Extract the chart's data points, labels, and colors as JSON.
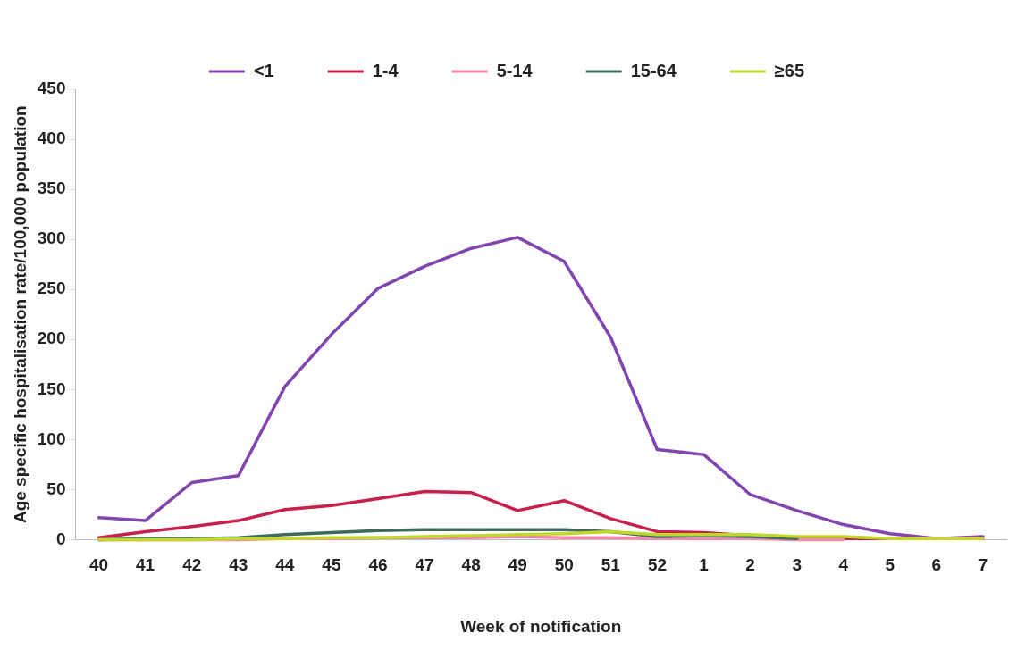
{
  "chart_data": {
    "type": "line",
    "xlabel": "Week of notification",
    "ylabel": "Age specific hospitalisation rate/100,000 population",
    "categories": [
      "40",
      "41",
      "42",
      "43",
      "44",
      "45",
      "46",
      "47",
      "48",
      "49",
      "50",
      "51",
      "52",
      "1",
      "2",
      "3",
      "4",
      "5",
      "6",
      "7"
    ],
    "ylim": [
      0,
      450
    ],
    "yticks": [
      0,
      50,
      100,
      150,
      200,
      250,
      300,
      350,
      400,
      450
    ],
    "grid": false,
    "legend": "top",
    "marker": "none",
    "line_style": "solid",
    "series": [
      {
        "name": "<1",
        "color": "#8245b0",
        "values": [
          22,
          19,
          57,
          64,
          153,
          205,
          251,
          273,
          291,
          302,
          278,
          202,
          90,
          85,
          45,
          29,
          15,
          6,
          1,
          3
        ]
      },
      {
        "name": "1-4",
        "color": "#c8204a",
        "values": [
          2,
          8,
          13,
          19,
          30,
          34,
          41,
          48,
          47,
          29,
          39,
          21,
          8,
          7,
          4,
          2,
          1,
          1,
          1,
          1
        ]
      },
      {
        "name": "5-14",
        "color": "#f08aa8",
        "values": [
          0,
          0,
          0,
          0,
          1,
          1,
          2,
          2,
          2,
          3,
          2,
          2,
          1,
          1,
          1,
          0,
          0,
          null,
          null,
          null
        ]
      },
      {
        "name": "15-64",
        "color": "#3d6b5e",
        "values": [
          0,
          1,
          1,
          2,
          5,
          7,
          9,
          10,
          10,
          10,
          10,
          8,
          3,
          4,
          3,
          1,
          null,
          null,
          null,
          null
        ]
      },
      {
        "name": "≥65",
        "color": "#c2d72e",
        "values": [
          0,
          0,
          0,
          1,
          1,
          2,
          2,
          3,
          4,
          5,
          6,
          8,
          5,
          5,
          5,
          3,
          3,
          1,
          1,
          1
        ]
      }
    ]
  }
}
